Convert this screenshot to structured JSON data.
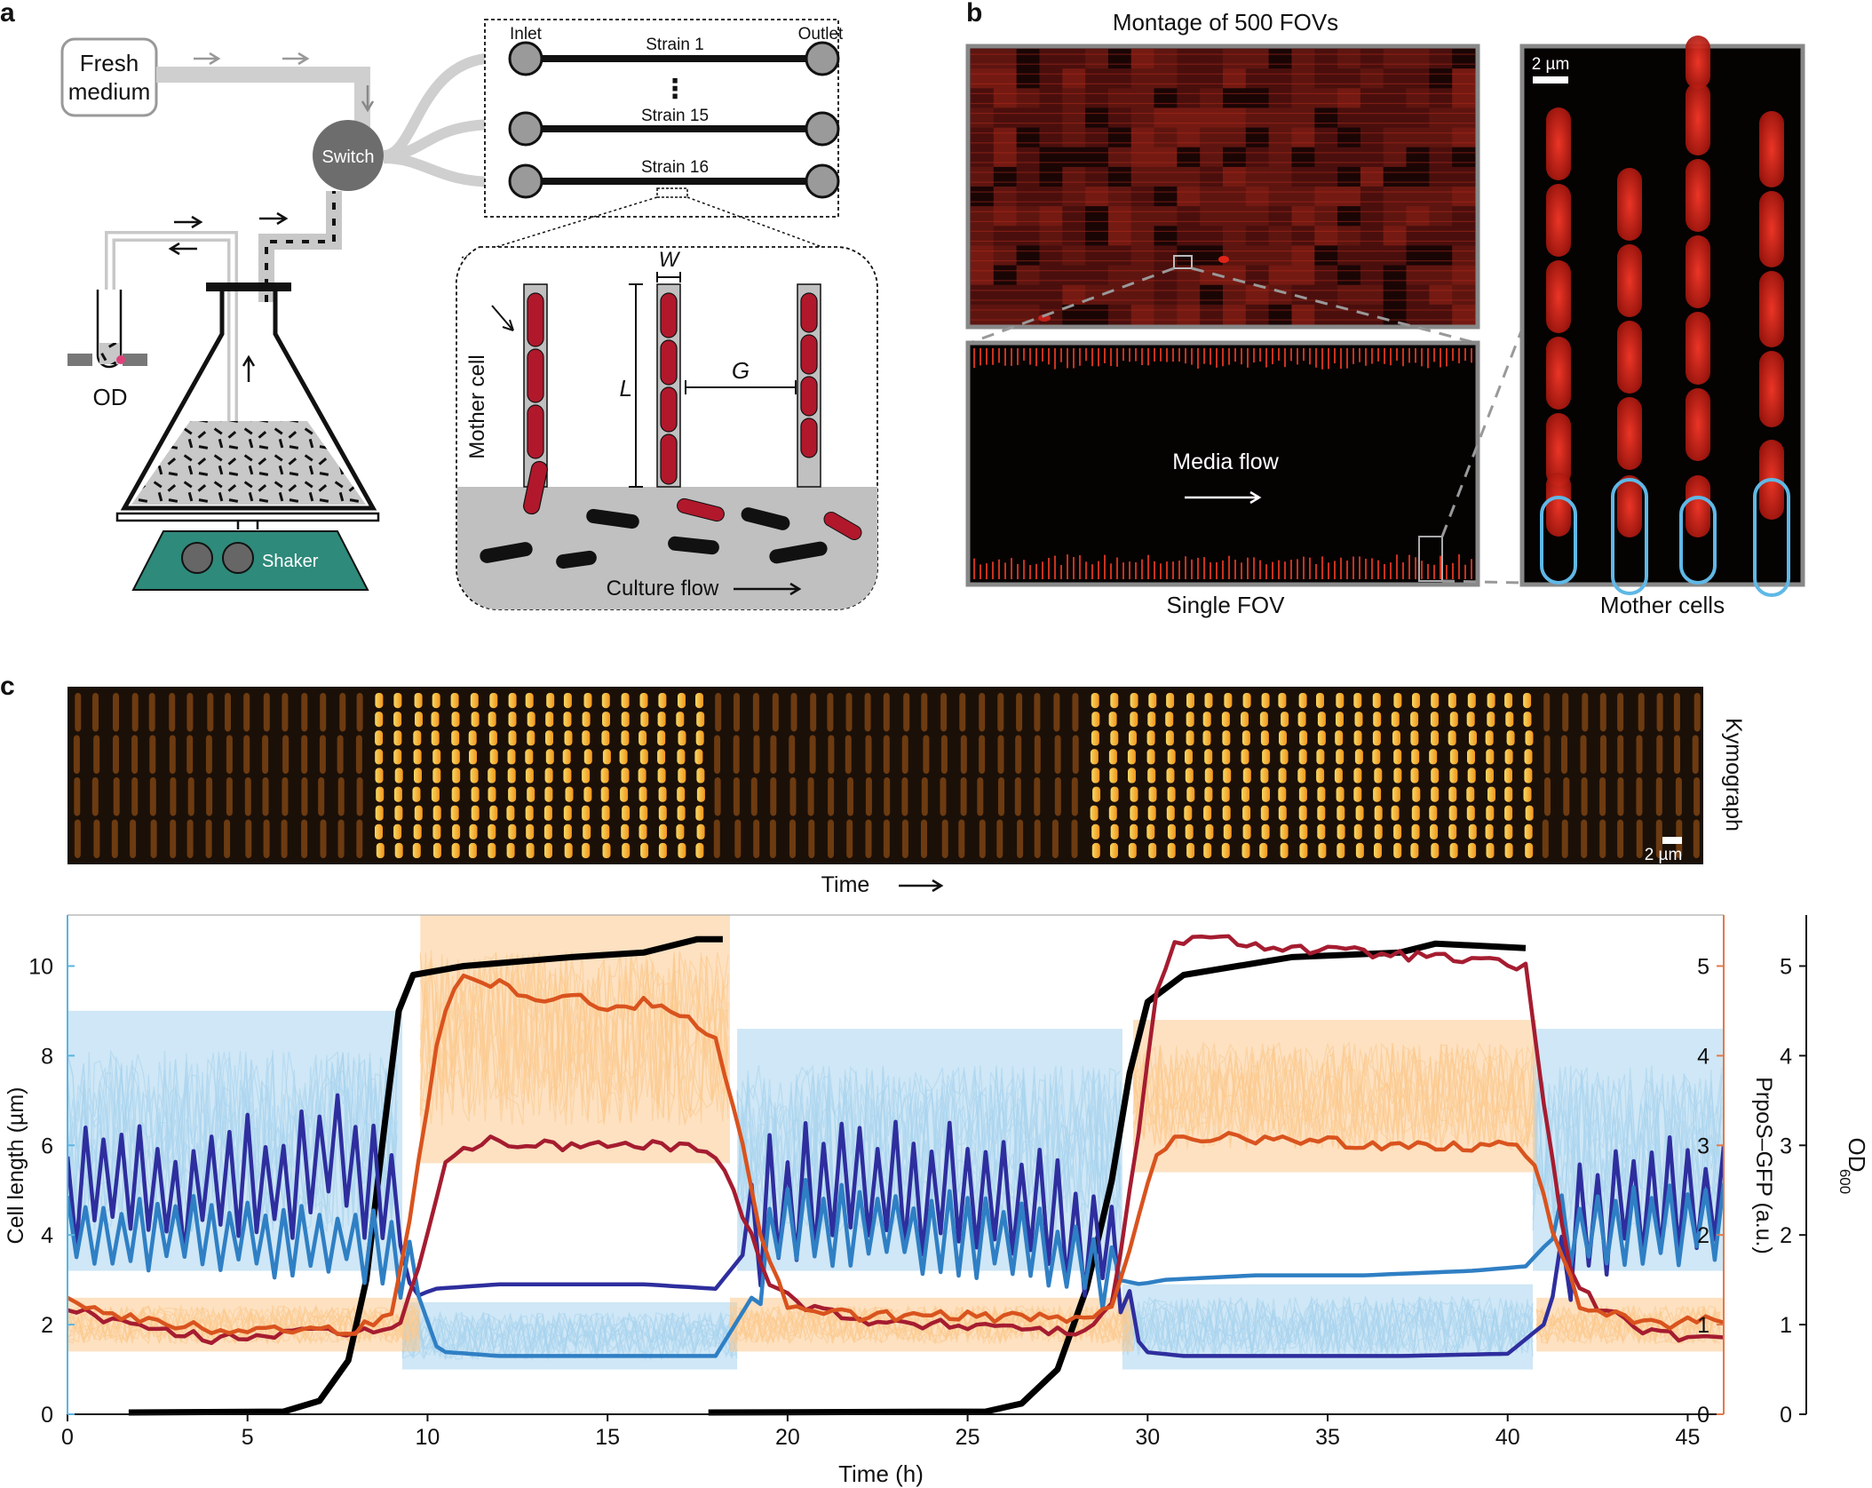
{
  "panel_a": {
    "letter": "a",
    "fresh_medium": [
      "Fresh",
      "medium"
    ],
    "switch": "Switch",
    "od": "OD",
    "shaker": "Shaker",
    "inlet": "Inlet",
    "outlet": "Outlet",
    "strains": [
      "Strain 1",
      "Strain 15",
      "Strain 16"
    ],
    "ellipsis": "⋮",
    "mother_cell": "Mother cell",
    "dim_w": "W",
    "dim_l": "L",
    "dim_g": "G",
    "culture_flow": "Culture flow"
  },
  "panel_b": {
    "letter": "b",
    "montage_title": "Montage of 500 FOVs",
    "media_flow": "Media flow",
    "single_fov": "Single FOV",
    "mother_cells": "Mother cells",
    "scale": "2 µm"
  },
  "panel_c": {
    "letter": "c",
    "kymograph": "Kymograph",
    "scale": "2 µm",
    "time": "Time"
  },
  "chart_data": {
    "type": "line",
    "xlabel": "Time (h)",
    "ylabel_left": "Cell length (µm)",
    "ylabel_right1": "PrpoS–GFP (a.u.)",
    "ylabel_right2": "OD",
    "ylabel_right2_sub": "600",
    "xlim": [
      0,
      46
    ],
    "xticks": [
      0,
      5,
      10,
      15,
      20,
      25,
      30,
      35,
      40,
      45
    ],
    "ylim_left": [
      0,
      11
    ],
    "yticks_left": [
      0,
      2,
      4,
      6,
      8,
      10
    ],
    "ylim_right": [
      0,
      5.5
    ],
    "yticks_right": [
      0,
      1,
      2,
      3,
      4,
      5
    ],
    "colors": {
      "cell_length_bg": "#a8d4ee",
      "gfp_bg": "#fbc98e",
      "navy": "#2e2e9e",
      "blue": "#2f7fc4",
      "red": "#a51c30",
      "orange": "#d9531e",
      "od": "#000000",
      "left_axis": "#5ab4e0",
      "right_axis": "#e07a4a"
    },
    "series": [
      {
        "name": "OD600 (black)",
        "axis": "right",
        "segments": [
          [
            [
              1.7,
              0.02
            ],
            [
              6,
              0.03
            ],
            [
              7,
              0.15
            ],
            [
              7.8,
              0.6
            ],
            [
              8.3,
              1.5
            ],
            [
              8.8,
              3.2
            ],
            [
              9.2,
              4.5
            ],
            [
              9.6,
              4.9
            ],
            [
              11,
              5.0
            ],
            [
              14,
              5.1
            ],
            [
              16,
              5.15
            ],
            [
              17.5,
              5.3
            ],
            [
              18.2,
              5.3
            ]
          ],
          [
            [
              17.8,
              0.02
            ],
            [
              25.5,
              0.03
            ],
            [
              26.5,
              0.12
            ],
            [
              27.5,
              0.5
            ],
            [
              28.3,
              1.4
            ],
            [
              29,
              2.6
            ],
            [
              29.5,
              3.8
            ],
            [
              30,
              4.6
            ],
            [
              31,
              4.9
            ],
            [
              34,
              5.1
            ],
            [
              37,
              5.15
            ],
            [
              38,
              5.25
            ],
            [
              40.5,
              5.2
            ]
          ]
        ]
      },
      {
        "name": "Cell length trace 1 (navy)",
        "axis": "left",
        "points": [
          [
            0,
            5.0
          ],
          [
            1.5,
            5.4
          ],
          [
            3,
            4.8
          ],
          [
            4.5,
            5.3
          ],
          [
            6,
            5.2
          ],
          [
            7.5,
            5.8
          ],
          [
            9,
            4.6
          ],
          [
            9.6,
            2.6
          ],
          [
            10.2,
            2.8
          ],
          [
            12,
            2.9
          ],
          [
            14,
            2.9
          ],
          [
            16,
            2.9
          ],
          [
            18,
            2.8
          ],
          [
            18.8,
            3.6
          ],
          [
            19.5,
            4.8
          ],
          [
            21,
            5.1
          ],
          [
            23,
            5.0
          ],
          [
            25,
            5.2
          ],
          [
            27,
            4.6
          ],
          [
            28.5,
            4.0
          ],
          [
            29.4,
            3.2
          ],
          [
            29.8,
            1.4
          ],
          [
            31,
            1.3
          ],
          [
            34,
            1.3
          ],
          [
            37,
            1.3
          ],
          [
            40,
            1.35
          ],
          [
            41,
            2.0
          ],
          [
            41.8,
            4.0
          ],
          [
            43,
            4.8
          ],
          [
            45,
            5.0
          ],
          [
            46,
            4.5
          ]
        ],
        "zigzag": [
          [
            0,
            9.2,
            1.4
          ],
          [
            18.8,
            29.4,
            1.4
          ],
          [
            41.5,
            46,
            1.4
          ]
        ]
      },
      {
        "name": "Cell length trace 2 (blue)",
        "axis": "left",
        "points": [
          [
            0,
            4.2
          ],
          [
            2,
            4.0
          ],
          [
            4,
            4.0
          ],
          [
            6,
            3.8
          ],
          [
            8,
            3.9
          ],
          [
            9.5,
            3.2
          ],
          [
            10.3,
            1.4
          ],
          [
            12,
            1.3
          ],
          [
            15,
            1.3
          ],
          [
            18,
            1.3
          ],
          [
            19,
            2.6
          ],
          [
            19.7,
            4.4
          ],
          [
            22,
            4.2
          ],
          [
            25,
            4.0
          ],
          [
            27,
            3.8
          ],
          [
            29.2,
            3.0
          ],
          [
            29.8,
            2.9
          ],
          [
            30.5,
            3.0
          ],
          [
            33,
            3.1
          ],
          [
            36,
            3.1
          ],
          [
            39,
            3.2
          ],
          [
            40.5,
            3.3
          ],
          [
            41.2,
            3.9
          ],
          [
            42.5,
            4.2
          ],
          [
            45,
            4.3
          ],
          [
            46,
            4.3
          ]
        ],
        "zigzag": [
          [
            0,
            9.5,
            0.8
          ],
          [
            19.2,
            29,
            0.9
          ],
          [
            41.3,
            46,
            0.9
          ]
        ]
      },
      {
        "name": "PrpoS-GFP trace (red)",
        "axis": "right",
        "points": [
          [
            0,
            1.2
          ],
          [
            2,
            0.95
          ],
          [
            4,
            0.85
          ],
          [
            6,
            0.9
          ],
          [
            8,
            0.9
          ],
          [
            9.2,
            1.0
          ],
          [
            9.8,
            1.7
          ],
          [
            10.5,
            2.8
          ],
          [
            11.5,
            3.05
          ],
          [
            13,
            3.0
          ],
          [
            15,
            3.0
          ],
          [
            17,
            3.0
          ],
          [
            18,
            2.9
          ],
          [
            18.8,
            2.2
          ],
          [
            19.5,
            1.5
          ],
          [
            20.5,
            1.2
          ],
          [
            23,
            1.0
          ],
          [
            26,
            1.0
          ],
          [
            28,
            0.9
          ],
          [
            29,
            1.2
          ],
          [
            29.6,
            2.7
          ],
          [
            30.2,
            4.6
          ],
          [
            30.8,
            5.3
          ],
          [
            32,
            5.3
          ],
          [
            34,
            5.2
          ],
          [
            36,
            5.15
          ],
          [
            38,
            5.1
          ],
          [
            40.5,
            5.0
          ],
          [
            41,
            3.5
          ],
          [
            41.7,
            1.6
          ],
          [
            42.5,
            1.2
          ],
          [
            44,
            0.9
          ],
          [
            46,
            0.8
          ]
        ]
      },
      {
        "name": "PrpoS-GFP trace (orange)",
        "axis": "right",
        "points": [
          [
            0,
            1.3
          ],
          [
            2,
            1.05
          ],
          [
            4,
            0.95
          ],
          [
            6,
            0.95
          ],
          [
            8,
            0.95
          ],
          [
            9.0,
            1.1
          ],
          [
            9.6,
            2.4
          ],
          [
            10.3,
            4.3
          ],
          [
            10.9,
            4.9
          ],
          [
            12,
            4.8
          ],
          [
            13,
            4.65
          ],
          [
            14,
            4.7
          ],
          [
            15,
            4.5
          ],
          [
            16,
            4.6
          ],
          [
            17,
            4.5
          ],
          [
            18,
            4.2
          ],
          [
            18.6,
            3.3
          ],
          [
            19.3,
            1.9
          ],
          [
            20,
            1.2
          ],
          [
            22,
            1.1
          ],
          [
            25,
            1.1
          ],
          [
            28,
            1.05
          ],
          [
            29,
            1.15
          ],
          [
            29.6,
            2.0
          ],
          [
            30.2,
            2.9
          ],
          [
            31,
            3.1
          ],
          [
            34,
            3.05
          ],
          [
            37,
            3.0
          ],
          [
            40,
            3.0
          ],
          [
            40.7,
            2.9
          ],
          [
            41.3,
            2.0
          ],
          [
            42,
            1.2
          ],
          [
            44,
            1.0
          ],
          [
            46,
            1.05
          ]
        ]
      }
    ],
    "bands": [
      {
        "name": "Cell length (individual traces)",
        "axis": "left",
        "segments": [
          [
            [
              0,
              3.2
            ],
            [
              9.3,
              3.2
            ],
            [
              9.3,
              9.0
            ],
            [
              0,
              9.0
            ]
          ],
          [
            [
              9.3,
              1.0
            ],
            [
              18.6,
              1.0
            ],
            [
              18.6,
              2.5
            ],
            [
              9.3,
              2.5
            ]
          ],
          [
            [
              18.6,
              3.2
            ],
            [
              29.3,
              3.2
            ],
            [
              29.3,
              8.6
            ],
            [
              18.6,
              8.6
            ]
          ],
          [
            [
              29.3,
              1.0
            ],
            [
              40.7,
              1.0
            ],
            [
              40.7,
              2.9
            ],
            [
              29.3,
              2.9
            ]
          ],
          [
            [
              40.7,
              3.2
            ],
            [
              46,
              3.2
            ],
            [
              46,
              8.6
            ],
            [
              40.7,
              8.6
            ]
          ]
        ]
      },
      {
        "name": "PrpoS-GFP (individual traces)",
        "axis": "right",
        "segments": [
          [
            [
              0,
              0.7
            ],
            [
              9.8,
              0.7
            ],
            [
              9.8,
              1.3
            ],
            [
              0,
              1.3
            ]
          ],
          [
            [
              9.8,
              2.8
            ],
            [
              18.4,
              2.8
            ],
            [
              18.4,
              5.6
            ],
            [
              9.8,
              5.6
            ]
          ],
          [
            [
              18.4,
              0.7
            ],
            [
              29.6,
              0.7
            ],
            [
              29.6,
              1.3
            ],
            [
              18.4,
              1.3
            ]
          ],
          [
            [
              29.6,
              2.7
            ],
            [
              40.8,
              2.7
            ],
            [
              40.8,
              4.4
            ],
            [
              29.6,
              4.4
            ]
          ],
          [
            [
              40.8,
              0.7
            ],
            [
              46,
              0.7
            ],
            [
              46,
              1.3
            ],
            [
              40.8,
              1.3
            ]
          ]
        ]
      }
    ]
  }
}
